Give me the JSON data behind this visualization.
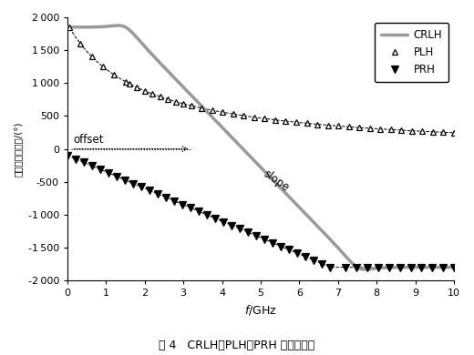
{
  "title": "",
  "xlabel": "f/GHz",
  "ylabel": "解卷绕相位响应/(°)",
  "xlim": [
    0,
    10
  ],
  "ylim": [
    -2000,
    2000
  ],
  "xticks": [
    0,
    1,
    2,
    3,
    4,
    5,
    6,
    7,
    8,
    9,
    10
  ],
  "yticks": [
    -2000,
    -1500,
    -1000,
    -500,
    0,
    500,
    1000,
    1500,
    2000
  ],
  "caption": "图 4   CRLH、PLH、PRH 的相位响应",
  "crlh_color": "#999999",
  "offset_text": "offset",
  "slope_text": "slope"
}
